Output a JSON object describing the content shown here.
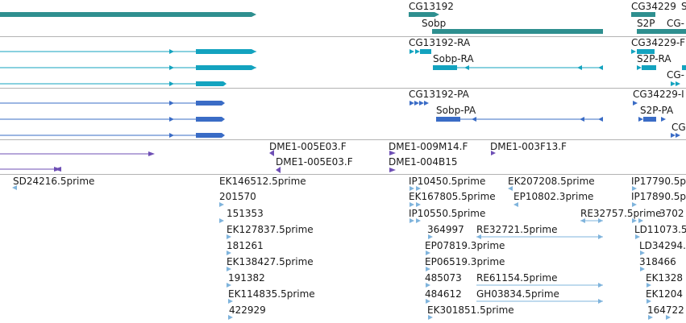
{
  "colors": {
    "gene": "#2e8f8f",
    "transcript": "#13a3bf",
    "protein": "#3a6cc6",
    "bac": "#6e4fb5",
    "est": "#7fb4dc",
    "divider": "#b3b3b3"
  },
  "tracks": {
    "genes": {
      "labels": [
        "CG13192",
        "Sobp",
        "CG34229",
        "S2P",
        "S",
        "CG-"
      ]
    },
    "transcripts": {
      "labels": [
        "CG13192-RA",
        "Sobp-RA",
        "CG34229-F",
        "S2P-RA",
        "CG-"
      ]
    },
    "proteins": {
      "labels": [
        "CG13192-PA",
        "Sobp-PA",
        "CG34229-I",
        "S2P-PA",
        "CG-"
      ]
    },
    "bac_ends": {
      "labels": [
        "DME1-005E03.F",
        "DME1-005E03.F",
        "DME1-009M14.F",
        "DME1-004B15",
        "DME1-003F13.F"
      ]
    },
    "ests": {
      "labels": [
        "SD24216.5prime",
        "EK146512.5prime",
        "201570",
        "151353",
        "EK127837.5prime",
        "181261",
        "EK138427.5prime",
        "191382",
        "EK114835.5prime",
        "422929",
        "IP10450.5prime",
        "EK207208.5prime",
        "EK167805.5prime",
        "EP10802.3prime",
        "IP10550.5prime",
        "RE32757.5prime",
        "364997",
        "RE32721.5prime",
        "EP07819.3prime",
        "EP06519.3prime",
        "485073",
        "RE61154.5prime",
        "484612",
        "GH03834.5prime",
        "EK301851.5prime",
        "IP17790.5p",
        "IP17890.5p",
        "3702",
        "LD11073.5",
        "LD34294.",
        "318466",
        "EK1328",
        "EK1204",
        "164722"
      ]
    }
  }
}
